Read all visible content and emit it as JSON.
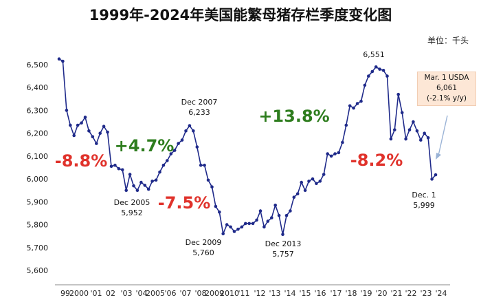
{
  "title": "1999年-2024年美国能繁母猪存栏季度变化图",
  "unit_label": "单位：千头",
  "colors": {
    "line": "#1f2a8a",
    "marker": "#1f2a8a",
    "red": "#e0322b",
    "green": "#2e7d1e",
    "arrow": "#9ab3d6"
  },
  "chart_data": {
    "type": "line",
    "ylim": [
      5600,
      6500
    ],
    "yticks": [
      5600,
      5700,
      5800,
      5900,
      6000,
      6100,
      6200,
      6300,
      6400,
      6500
    ],
    "ytick_labels": [
      "5,600",
      "5,700",
      "5,800",
      "5,900",
      "6,000",
      "6,100",
      "6,200",
      "6,300",
      "6,400",
      "6,500"
    ],
    "xtick_labels": [
      "99",
      "2000",
      "'01",
      "02",
      "'03",
      "'04",
      "2005",
      "'06",
      "'07",
      "'08",
      "2009",
      "2010",
      "'11",
      "'12",
      "'13",
      "'14",
      "'15",
      "'16",
      "'17",
      "'18",
      "'19",
      "'20",
      "'21",
      "'22",
      "'23",
      "'24"
    ],
    "grid": false,
    "series": [
      {
        "values": [
          6525,
          6515,
          6300,
          6235,
          6190,
          6235,
          6245,
          6270,
          6210,
          6185,
          6155,
          6200,
          6230,
          6205,
          6055,
          6060,
          6045,
          6040,
          5950,
          6020,
          5970,
          5950,
          5985,
          5972,
          5955,
          5990,
          5995,
          6030,
          6060,
          6080,
          6110,
          6125,
          6155,
          6170,
          6210,
          6233,
          6210,
          6140,
          6060,
          6060,
          5995,
          5965,
          5880,
          5855,
          5760,
          5800,
          5790,
          5770,
          5780,
          5790,
          5805,
          5805,
          5805,
          5820,
          5860,
          5790,
          5815,
          5830,
          5885,
          5840,
          5757,
          5840,
          5860,
          5920,
          5935,
          5985,
          5950,
          5990,
          6000,
          5980,
          5990,
          6020,
          6110,
          6100,
          6110,
          6115,
          6160,
          6235,
          6320,
          6310,
          6330,
          6340,
          6410,
          6450,
          6470,
          6490,
          6480,
          6475,
          6450,
          6175,
          6215,
          6370,
          6290,
          6175,
          6215,
          6250,
          6210,
          6170,
          6200,
          6180,
          5999,
          6018
        ]
      }
    ],
    "annotations": [
      {
        "label": "Dec 2005",
        "value": "5,952"
      },
      {
        "label": "Dec 2007",
        "value": "6,233"
      },
      {
        "label": "Dec 2009",
        "value": "5,760"
      },
      {
        "label": "Dec 2013",
        "value": "5,757"
      },
      {
        "label": "",
        "value": "6,551"
      },
      {
        "label": "Dec. 1",
        "value": "5,999"
      }
    ],
    "changes": [
      {
        "text": "-8.8%",
        "color": "red"
      },
      {
        "text": "+4.7%",
        "color": "green"
      },
      {
        "text": "-7.5%",
        "color": "red"
      },
      {
        "text": "+13.8%",
        "color": "green"
      },
      {
        "text": "-8.2%",
        "color": "red"
      }
    ],
    "callout": {
      "line1": "Mar. 1 USDA",
      "line2": "6,061",
      "line3": "(-2.1% y/y)"
    }
  }
}
